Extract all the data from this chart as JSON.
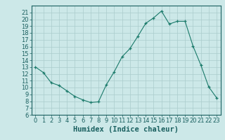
{
  "x": [
    0,
    1,
    2,
    3,
    4,
    5,
    6,
    7,
    8,
    9,
    10,
    11,
    12,
    13,
    14,
    15,
    16,
    17,
    18,
    19,
    20,
    21,
    22,
    23
  ],
  "y": [
    13,
    12.2,
    10.7,
    10.3,
    9.5,
    8.7,
    8.2,
    7.8,
    7.9,
    10.4,
    12.3,
    14.5,
    15.7,
    17.5,
    19.4,
    20.2,
    21.2,
    19.3,
    19.7,
    19.7,
    16.1,
    13.3,
    10.1,
    8.5
  ],
  "line_color": "#1a7a6a",
  "marker": "+",
  "marker_color": "#1a7a6a",
  "bg_color": "#cce8e8",
  "grid_color": "#aacccc",
  "xlabel": "Humidex (Indice chaleur)",
  "ylim": [
    6,
    22
  ],
  "xlim": [
    -0.5,
    23.5
  ],
  "yticks": [
    6,
    7,
    8,
    9,
    10,
    11,
    12,
    13,
    14,
    15,
    16,
    17,
    18,
    19,
    20,
    21
  ],
  "xticks": [
    0,
    1,
    2,
    3,
    4,
    5,
    6,
    7,
    8,
    9,
    10,
    11,
    12,
    13,
    14,
    15,
    16,
    17,
    18,
    19,
    20,
    21,
    22,
    23
  ],
  "tick_color": "#1a6060",
  "label_fontsize": 7.5,
  "tick_fontsize": 6
}
